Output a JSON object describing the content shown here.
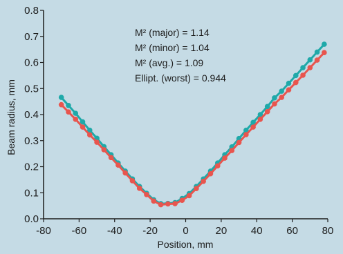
{
  "chart_data": {
    "type": "line",
    "title": "",
    "xlabel": "Position, mm",
    "ylabel": "Beam radius, mm",
    "xlim": [
      -80,
      80
    ],
    "ylim": [
      0.0,
      0.8
    ],
    "x_ticks": [
      "-80",
      "-60",
      "-40",
      "-20",
      "0",
      "20",
      "40",
      "60",
      "80"
    ],
    "y_ticks": [
      "0.0",
      "0.1",
      "0.2",
      "0.3",
      "0.4",
      "0.5",
      "0.6",
      "0.7",
      "0.8"
    ],
    "grid": false,
    "annotations": [
      "M² (major) = 1.14",
      "M² (minor) = 1.04",
      "M² (avg.) = 1.09",
      "Ellipt. (worst) = 0.944"
    ],
    "series": [
      {
        "color": "#1fa9a9",
        "x": [
          -70,
          -66,
          -62,
          -58,
          -54,
          -50,
          -46,
          -42,
          -38,
          -34,
          -30,
          -26,
          -22,
          -18,
          -14,
          -10,
          -6,
          -2,
          2,
          6,
          10,
          14,
          18,
          22,
          26,
          30,
          34,
          38,
          42,
          46,
          50,
          54,
          58,
          62,
          66,
          70,
          74,
          78
        ],
        "values": [
          0.466,
          0.435,
          0.405,
          0.372,
          0.34,
          0.309,
          0.277,
          0.246,
          0.214,
          0.183,
          0.153,
          0.124,
          0.098,
          0.073,
          0.058,
          0.059,
          0.062,
          0.078,
          0.097,
          0.124,
          0.153,
          0.183,
          0.214,
          0.246,
          0.276,
          0.308,
          0.34,
          0.37,
          0.4,
          0.431,
          0.464,
          0.49,
          0.52,
          0.55,
          0.58,
          0.61,
          0.64,
          0.67
        ]
      },
      {
        "color": "#e8554e",
        "x": [
          -70,
          -66,
          -62,
          -58,
          -54,
          -50,
          -46,
          -42,
          -38,
          -34,
          -30,
          -26,
          -22,
          -18,
          -14,
          -10,
          -6,
          -2,
          2,
          6,
          10,
          14,
          18,
          22,
          26,
          30,
          34,
          38,
          42,
          46,
          50,
          54,
          58,
          62,
          66,
          70,
          74,
          78
        ],
        "values": [
          0.438,
          0.41,
          0.382,
          0.352,
          0.322,
          0.294,
          0.265,
          0.235,
          0.206,
          0.176,
          0.146,
          0.117,
          0.093,
          0.068,
          0.054,
          0.057,
          0.058,
          0.071,
          0.089,
          0.116,
          0.144,
          0.173,
          0.203,
          0.233,
          0.262,
          0.293,
          0.323,
          0.352,
          0.382,
          0.411,
          0.441,
          0.466,
          0.495,
          0.523,
          0.551,
          0.58,
          0.609,
          0.638
        ]
      }
    ]
  }
}
